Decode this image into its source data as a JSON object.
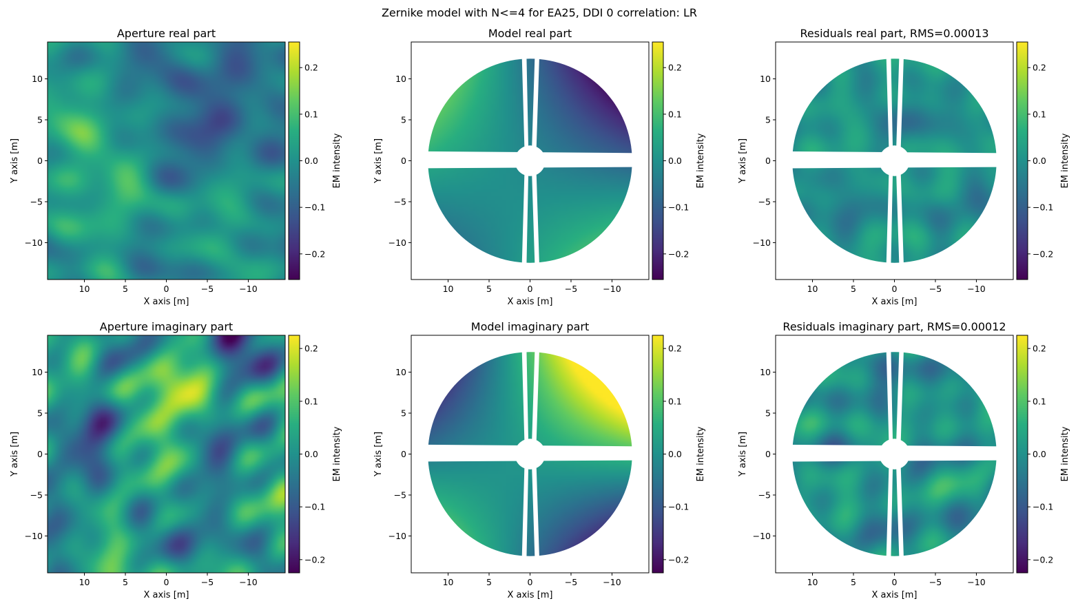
{
  "suptitle": "Zernike model with N<=4 for EA25, DDI 0 correlation: LR",
  "colorbar_label": "EM intensity",
  "colors": {
    "colormap": "viridis",
    "viridis_stops": [
      "#440154",
      "#472d7b",
      "#3b528b",
      "#2c728e",
      "#21918c",
      "#28ae80",
      "#5ec962",
      "#addc30",
      "#fde725"
    ]
  },
  "chart_data": [
    {
      "type": "heatmap",
      "title": "Aperture real part",
      "xlabel": "X axis [m]",
      "ylabel": "Y axis [m]",
      "xlim": [
        14.5,
        -14.5
      ],
      "ylim": [
        -14.5,
        14.5
      ],
      "x_ticks": [
        10,
        5,
        0,
        -5,
        -10
      ],
      "x_tick_labels": [
        "10",
        "5",
        "0",
        "−5",
        "−10"
      ],
      "y_ticks": [
        10,
        5,
        0,
        -5,
        -10
      ],
      "y_tick_labels": [
        "10",
        "5",
        "0",
        "−5",
        "−10"
      ],
      "masked_to_aperture": false,
      "colorbar": {
        "label": "EM intensity",
        "range": [
          -0.255,
          0.255
        ],
        "ticks": [
          0.2,
          0.1,
          0.0,
          -0.1,
          -0.2
        ],
        "tick_labels": [
          "0.2",
          "0.1",
          "0.0",
          "−0.1",
          "−0.2"
        ]
      }
    },
    {
      "type": "heatmap",
      "title": "Model real part",
      "xlabel": "X axis [m]",
      "ylabel": "Y axis [m]",
      "xlim": [
        14.5,
        -14.5
      ],
      "ylim": [
        -14.5,
        14.5
      ],
      "x_ticks": [
        10,
        5,
        0,
        -5,
        -10
      ],
      "x_tick_labels": [
        "10",
        "5",
        "0",
        "−5",
        "−10"
      ],
      "y_ticks": [
        10,
        5,
        0,
        -5,
        -10
      ],
      "y_tick_labels": [
        "10",
        "5",
        "0",
        "−5",
        "−10"
      ],
      "masked_to_aperture": true,
      "colorbar": {
        "label": "EM intensity",
        "range": [
          -0.255,
          0.255
        ],
        "ticks": [
          0.2,
          0.1,
          0.0,
          -0.1,
          -0.2
        ],
        "tick_labels": [
          "0.2",
          "0.1",
          "0.0",
          "−0.1",
          "−0.2"
        ]
      }
    },
    {
      "type": "heatmap",
      "title": "Residuals real part, RMS=0.00013",
      "xlabel": "X axis [m]",
      "ylabel": "Y axis [m]",
      "xlim": [
        14.5,
        -14.5
      ],
      "ylim": [
        -14.5,
        14.5
      ],
      "x_ticks": [
        10,
        5,
        0,
        -5,
        -10
      ],
      "x_tick_labels": [
        "10",
        "5",
        "0",
        "−5",
        "−10"
      ],
      "y_ticks": [
        10,
        5,
        0,
        -5,
        -10
      ],
      "y_tick_labels": [
        "10",
        "5",
        "0",
        "−5",
        "−10"
      ],
      "masked_to_aperture": true,
      "colorbar": {
        "label": "EM intensity",
        "range": [
          -0.255,
          0.255
        ],
        "ticks": [
          0.2,
          0.1,
          0.0,
          -0.1,
          -0.2
        ],
        "tick_labels": [
          "0.2",
          "0.1",
          "0.0",
          "−0.1",
          "−0.2"
        ]
      }
    },
    {
      "type": "heatmap",
      "title": "Aperture imaginary part",
      "xlabel": "X axis [m]",
      "ylabel": "Y axis [m]",
      "xlim": [
        14.5,
        -14.5
      ],
      "ylim": [
        -14.5,
        14.5
      ],
      "x_ticks": [
        10,
        5,
        0,
        -5,
        -10
      ],
      "x_tick_labels": [
        "10",
        "5",
        "0",
        "−5",
        "−10"
      ],
      "y_ticks": [
        10,
        5,
        0,
        -5,
        -10
      ],
      "y_tick_labels": [
        "10",
        "5",
        "0",
        "−5",
        "−10"
      ],
      "masked_to_aperture": false,
      "colorbar": {
        "label": "EM intensity",
        "range": [
          -0.225,
          0.225
        ],
        "ticks": [
          0.2,
          0.1,
          0.0,
          -0.1,
          -0.2
        ],
        "tick_labels": [
          "0.2",
          "0.1",
          "0.0",
          "−0.1",
          "−0.2"
        ]
      }
    },
    {
      "type": "heatmap",
      "title": "Model imaginary part",
      "xlabel": "X axis [m]",
      "ylabel": "Y axis [m]",
      "xlim": [
        14.5,
        -14.5
      ],
      "ylim": [
        -14.5,
        14.5
      ],
      "x_ticks": [
        10,
        5,
        0,
        -5,
        -10
      ],
      "x_tick_labels": [
        "10",
        "5",
        "0",
        "−5",
        "−10"
      ],
      "y_ticks": [
        10,
        5,
        0,
        -5,
        -10
      ],
      "y_tick_labels": [
        "10",
        "5",
        "0",
        "−5",
        "−10"
      ],
      "masked_to_aperture": true,
      "colorbar": {
        "label": "EM intensity",
        "range": [
          -0.225,
          0.225
        ],
        "ticks": [
          0.2,
          0.1,
          0.0,
          -0.1,
          -0.2
        ],
        "tick_labels": [
          "0.2",
          "0.1",
          "0.0",
          "−0.1",
          "−0.2"
        ]
      }
    },
    {
      "type": "heatmap",
      "title": "Residuals imaginary part, RMS=0.00012",
      "xlabel": "X axis [m]",
      "ylabel": "Y axis [m]",
      "xlim": [
        14.5,
        -14.5
      ],
      "ylim": [
        -14.5,
        14.5
      ],
      "x_ticks": [
        10,
        5,
        0,
        -5,
        -10
      ],
      "x_tick_labels": [
        "10",
        "5",
        "0",
        "−5",
        "−10"
      ],
      "y_ticks": [
        10,
        5,
        0,
        -5,
        -10
      ],
      "y_tick_labels": [
        "10",
        "5",
        "0",
        "−5",
        "−10"
      ],
      "masked_to_aperture": true,
      "colorbar": {
        "label": "EM intensity",
        "range": [
          -0.225,
          0.225
        ],
        "ticks": [
          0.2,
          0.1,
          0.0,
          -0.1,
          -0.2
        ],
        "tick_labels": [
          "0.2",
          "0.1",
          "0.0",
          "−0.1",
          "−0.2"
        ]
      }
    }
  ]
}
